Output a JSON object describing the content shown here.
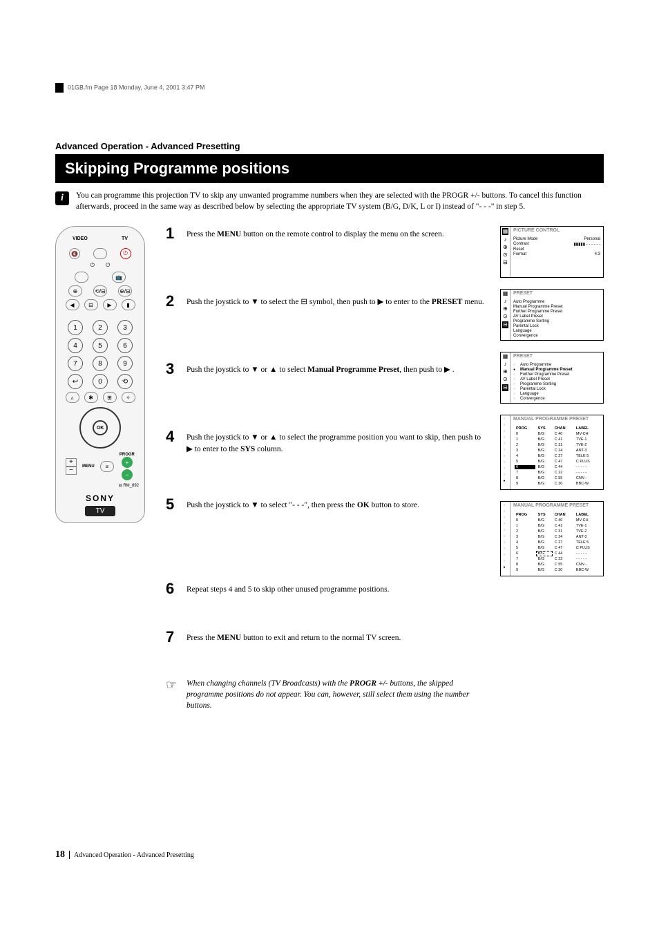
{
  "header_line": "01GB.fm  Page 18  Monday, June 4, 2001  3:47 PM",
  "section_label": "Advanced Operation - Advanced Presetting",
  "title": "Skipping Programme positions",
  "intro": "You can programme this projection TV to skip any unwanted programme numbers when they are selected with the PROGR +/- buttons. To cancel this function afterwards, proceed in the same way as described below by selecting the appropriate TV system (B/G, D/K, L or I) instead of \"- - -\" in step 5.",
  "remote": {
    "video": "VIDEO",
    "tv": "TV",
    "power_sym": "⏻",
    "brand": "SONY",
    "label_tv": "TV",
    "ok": "OK",
    "menu": "MENU",
    "progr": "PROGR",
    "num": [
      "1",
      "2",
      "3",
      "4",
      "5",
      "6",
      "7",
      "8",
      "9",
      "0"
    ]
  },
  "steps": [
    {
      "n": "1",
      "t": "Press the <b>MENU</b> button on the remote control to display the menu on the screen."
    },
    {
      "n": "2",
      "t": "Push the joystick to ▼ to select the ⊟ symbol, then push to ▶ to enter to the <b>PRESET</b> menu."
    },
    {
      "n": "3",
      "t": "Push the joystick to ▼ or ▲ to select <b>Manual Programme Preset</b>, then push to ▶ ."
    },
    {
      "n": "4",
      "t": "Push the joystick to ▼ or ▲ to select the programme position you want to skip, then push to ▶ to enter to the <b>SYS</b> column."
    },
    {
      "n": "5",
      "t": "Push the joystick to ▼ to select \"- - -\", then press the <b>OK</b> button to store."
    },
    {
      "n": "6",
      "t": "Repeat steps 4 and 5 to skip other unused programme positions."
    },
    {
      "n": "7",
      "t": "Press the <b>MENU</b> button to exit and return to the normal TV screen."
    }
  ],
  "note": "When changing channels (TV Broadcasts) with the <b>PROGR +/-</b> buttons, the skipped programme positions do not appear. You can, however, still select them using the number buttons.",
  "osd": {
    "box1": {
      "title": "PICTURE  CONTROL",
      "rows": [
        [
          "Picture Mode",
          "Personal"
        ],
        [
          "Contrast",
          "▮▮▮▮▮ - - - - - -"
        ],
        [
          "Reset",
          ""
        ],
        [
          "Format",
          "4:3"
        ]
      ]
    },
    "box2": {
      "title": "PRESET",
      "items": [
        "Auto Programme",
        "Manual Programme Preset",
        "Further Programme Preset",
        "AV Label Preset",
        "Programme Sorting",
        "Parental Lock",
        "Language",
        "Convergence"
      ]
    },
    "box3": {
      "title": "PRESET",
      "items": [
        "Auto Programme",
        "Manual Programme Preset",
        "Further Programme Preset",
        "AV Label Preset",
        "Programme Sorting",
        "Parental Lock",
        "Language",
        "Convergence"
      ],
      "selected": 1
    },
    "table_title": "MANUAL PROGRAMME PRESET",
    "header": [
      "PROG",
      "SYS",
      "CHAN",
      "LABEL"
    ],
    "rows": [
      [
        "0",
        "B/G",
        "C 40",
        "MV-CH"
      ],
      [
        "1",
        "B/G",
        "C 41",
        "TVE-1"
      ],
      [
        "2",
        "B/G",
        "C 31",
        "TVE-2"
      ],
      [
        "3",
        "B/G",
        "C 24",
        "ANT-3"
      ],
      [
        "4",
        "B/G",
        "C 27",
        "TELE 5"
      ],
      [
        "5",
        "B/G",
        "C 47",
        "C PLUS"
      ],
      [
        "6",
        "B/G",
        "C 44",
        "- - - - -"
      ],
      [
        "7",
        "B/G",
        "C 22",
        "- - - - -"
      ],
      [
        "8",
        "B/G",
        "C 55",
        "CNN -"
      ],
      [
        "9",
        "B/G",
        "C 30",
        "BBC-W"
      ]
    ],
    "sel_sys_row": 6
  },
  "footer": {
    "page": "18",
    "label": "Advanced Operation - Advanced Presetting"
  }
}
